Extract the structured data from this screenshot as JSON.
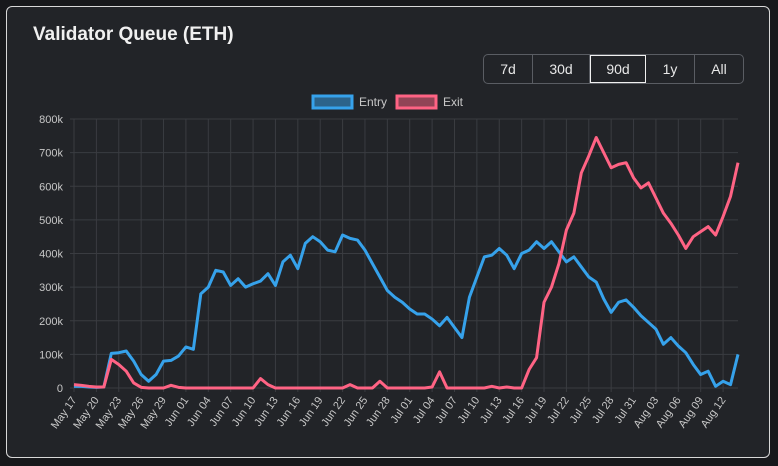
{
  "title": "Validator Queue (ETH)",
  "ranges": [
    {
      "label": "7d"
    },
    {
      "label": "30d"
    },
    {
      "label": "90d",
      "active": true
    },
    {
      "label": "1y"
    },
    {
      "label": "All"
    }
  ],
  "chart_data": {
    "type": "line",
    "title": "Validator Queue (ETH)",
    "ylim": [
      0,
      800000
    ],
    "yticks": [
      "0",
      "100k",
      "200k",
      "300k",
      "400k",
      "500k",
      "600k",
      "700k",
      "800k"
    ],
    "xticks": [
      "May 17",
      "May 20",
      "May 23",
      "May 26",
      "May 29",
      "Jun 01",
      "Jun 04",
      "Jun 07",
      "Jun 10",
      "Jun 13",
      "Jun 16",
      "Jun 19",
      "Jun 22",
      "Jun 25",
      "Jun 28",
      "Jul 01",
      "Jul 04",
      "Jul 07",
      "Jul 10",
      "Jul 13",
      "Jul 16",
      "Jul 19",
      "Jul 22",
      "Jul 25",
      "Jul 28",
      "Jul 31",
      "Aug 03",
      "Aug 06",
      "Aug 09",
      "Aug 12"
    ],
    "x_start": "May 17",
    "x_end": "Aug 14",
    "points": 90,
    "grid": true,
    "legend": "top-center",
    "series": [
      {
        "name": "Entry",
        "color": "#36a2eb",
        "values": [
          5,
          5,
          3,
          2,
          3,
          103,
          105,
          110,
          80,
          40,
          20,
          40,
          80,
          82,
          95,
          122,
          115,
          280,
          300,
          350,
          345,
          305,
          325,
          300,
          310,
          318,
          340,
          305,
          375,
          395,
          355,
          430,
          450,
          435,
          410,
          405,
          455,
          445,
          440,
          410,
          370,
          330,
          290,
          270,
          255,
          235,
          220,
          220,
          205,
          185,
          210,
          180,
          150,
          270,
          330,
          390,
          395,
          415,
          395,
          355,
          400,
          410,
          435,
          415,
          435,
          405,
          375,
          390,
          360,
          330,
          315,
          265,
          225,
          255,
          262,
          240,
          215,
          195,
          175,
          130,
          150,
          125,
          105,
          70,
          40,
          50,
          5,
          20,
          10,
          100
        ]
      },
      {
        "name": "Exit",
        "color": "#ff6384",
        "values": [
          10,
          8,
          5,
          3,
          3,
          85,
          70,
          50,
          15,
          2,
          0,
          0,
          0,
          8,
          2,
          0,
          0,
          0,
          0,
          0,
          0,
          0,
          0,
          0,
          0,
          28,
          10,
          0,
          0,
          0,
          0,
          0,
          0,
          0,
          0,
          0,
          0,
          10,
          0,
          0,
          0,
          20,
          0,
          0,
          0,
          0,
          0,
          0,
          3,
          48,
          0,
          0,
          0,
          0,
          0,
          0,
          5,
          0,
          3,
          0,
          0,
          55,
          90,
          255,
          300,
          370,
          470,
          520,
          640,
          690,
          745,
          700,
          655,
          665,
          670,
          625,
          595,
          610,
          565,
          520,
          490,
          455,
          415,
          450,
          465,
          480,
          455,
          510,
          570,
          670
        ]
      }
    ],
    "value_unit": "thousands ETH"
  }
}
